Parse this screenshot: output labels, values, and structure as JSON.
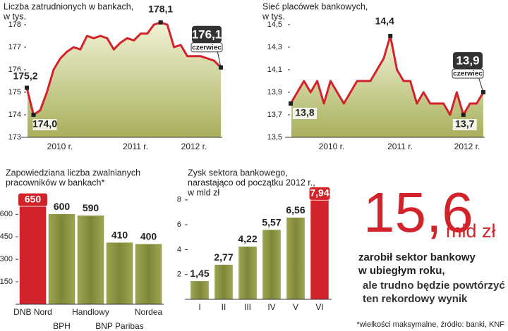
{
  "chart_data": [
    {
      "type": "line",
      "title": [
        "Liczba zatrudnionych w bankach,",
        "w tys."
      ],
      "categories": [
        null,
        null,
        null,
        null,
        null,
        null,
        null,
        null,
        null,
        null,
        null,
        null,
        null,
        null,
        null,
        null,
        null,
        null,
        null,
        null,
        null,
        null,
        null,
        null,
        null,
        null,
        null,
        null,
        null,
        null
      ],
      "values": [
        175.2,
        174.0,
        174.2,
        175.0,
        176.0,
        176.5,
        176.8,
        177.0,
        176.9,
        177.5,
        177.4,
        177.5,
        177.4,
        176.9,
        177.2,
        177.4,
        177.3,
        177.6,
        177.6,
        178.0,
        178.1,
        178.0,
        177.0,
        177.1,
        176.6,
        176.6,
        176.6,
        176.5,
        176.4,
        176.1
      ],
      "value_labels": [
        "175,2",
        "174,0",
        null,
        null,
        null,
        null,
        null,
        null,
        null,
        null,
        null,
        null,
        null,
        null,
        null,
        null,
        null,
        null,
        null,
        null,
        "178,1",
        null,
        null,
        null,
        null,
        null,
        null,
        null,
        null,
        "176,1"
      ],
      "annotation": "czerwiec",
      "x_labels": [
        "2010 r.",
        "2011 r.",
        "2012 r."
      ],
      "color": "#d2232a",
      "ylim": [
        173,
        178
      ],
      "yticks": [
        173,
        174,
        175,
        176,
        177,
        178
      ]
    },
    {
      "type": "line",
      "title": [
        "Sieć placówek bankowych,",
        "w tys."
      ],
      "categories": [
        null,
        null,
        null,
        null,
        null,
        null,
        null,
        null,
        null,
        null,
        null,
        null,
        null,
        null,
        null,
        null,
        null,
        null,
        null,
        null,
        null,
        null,
        null,
        null,
        null,
        null,
        null,
        null,
        null,
        null
      ],
      "values": [
        13.8,
        13.9,
        14.0,
        13.9,
        14.0,
        13.8,
        14.0,
        13.9,
        13.8,
        13.9,
        14.0,
        14.0,
        14.0,
        14.1,
        14.2,
        14.4,
        14.1,
        14.0,
        14.0,
        13.8,
        13.9,
        13.8,
        13.8,
        13.8,
        13.7,
        13.9,
        13.7,
        13.8,
        13.8,
        13.9
      ],
      "value_labels": [
        "13,8",
        null,
        null,
        null,
        null,
        null,
        null,
        null,
        null,
        null,
        null,
        null,
        null,
        null,
        null,
        "14,4",
        null,
        null,
        null,
        null,
        null,
        null,
        null,
        null,
        null,
        null,
        "13,7",
        null,
        null,
        "13,9"
      ],
      "annotation": "czerwiec",
      "x_labels": [
        "2010 r.",
        "2011 r.",
        "2012 r."
      ],
      "color": "#d2232a",
      "ylim": [
        13.5,
        14.5
      ],
      "yticks": [
        {
          "value": 13.5,
          "label": "13,5"
        },
        {
          "value": 13.7,
          "label": "13,7"
        },
        {
          "value": 13.9,
          "label": "13,9"
        },
        {
          "value": 14.1,
          "label": "14,1"
        },
        {
          "value": 14.3,
          "label": "14,3"
        },
        {
          "value": 14.5,
          "label": "14,5"
        }
      ]
    },
    {
      "type": "bar",
      "title": [
        "Zapowiedziana liczba zwalnianych",
        "pracowników w bankach*"
      ],
      "categories": [
        "DNB Nord",
        "BPH",
        "Handlowy",
        "BNP Paribas",
        "Nordea"
      ],
      "values": [
        650,
        600,
        590,
        410,
        400
      ],
      "colors": [
        "#d2232a",
        "#8a9140",
        "#8a9140",
        "#8a9140",
        "#8a9140"
      ],
      "ylim": [
        0,
        700
      ],
      "yticks": [
        150,
        300,
        450,
        600
      ]
    },
    {
      "type": "bar",
      "title": [
        "Zysk sektora bankowego,",
        "narastająco od początku 2012 r.,",
        "w mld zł"
      ],
      "categories": [
        "I",
        "II",
        "III",
        "IV",
        "V",
        "VI"
      ],
      "values": [
        1.45,
        2.77,
        4.22,
        5.57,
        6.56,
        7.94
      ],
      "value_labels": [
        "1,45",
        "2,77",
        "4,22",
        "5,57",
        "6,56",
        "7,94"
      ],
      "colors": [
        "#8a9140",
        "#8a9140",
        "#8a9140",
        "#8a9140",
        "#8a9140",
        "#d2232a"
      ],
      "ylim": [
        0,
        8.5
      ],
      "yticks": [
        2,
        4,
        6,
        8
      ]
    }
  ],
  "callout": {
    "number": "15,6",
    "unit": "mld zł",
    "lines": [
      "zarobił sektor bankowy",
      "w ubiegłym roku,",
      "ale trudno będzie powtórzyć",
      "ten rekordowy wynik"
    ]
  },
  "footnote": "*wielkości maksymalne, źródło: banki, KNF"
}
